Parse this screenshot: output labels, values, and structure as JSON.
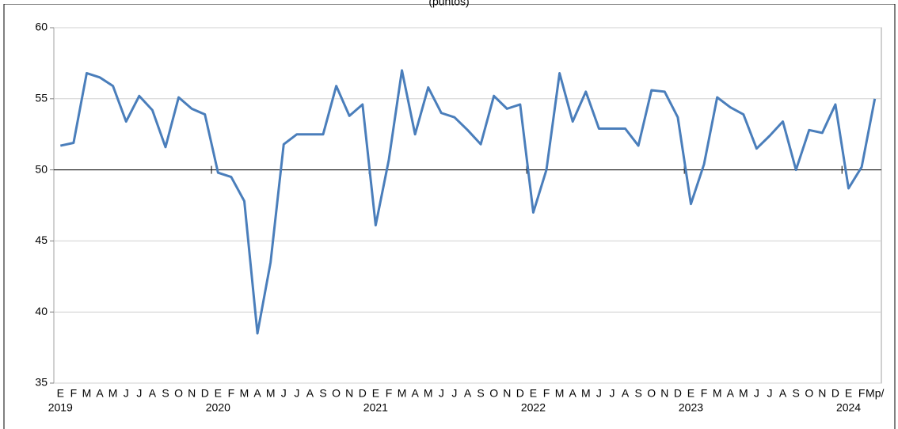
{
  "chart_data": {
    "type": "line",
    "title": "(puntos)",
    "categories": [
      "E",
      "F",
      "M",
      "A",
      "M",
      "J",
      "J",
      "A",
      "S",
      "O",
      "N",
      "D",
      "E",
      "F",
      "M",
      "A",
      "M",
      "J",
      "J",
      "A",
      "S",
      "O",
      "N",
      "D",
      "E",
      "F",
      "M",
      "A",
      "M",
      "J",
      "J",
      "A",
      "S",
      "O",
      "N",
      "D",
      "E",
      "F",
      "M",
      "A",
      "M",
      "J",
      "J",
      "A",
      "S",
      "O",
      "N",
      "D",
      "E",
      "F",
      "M",
      "A",
      "M",
      "J",
      "J",
      "A",
      "S",
      "O",
      "N",
      "D",
      "E",
      "F",
      "Mp/"
    ],
    "category_groups": [
      "2019",
      null,
      null,
      null,
      null,
      null,
      null,
      null,
      null,
      null,
      null,
      null,
      "2020",
      null,
      null,
      null,
      null,
      null,
      null,
      null,
      null,
      null,
      null,
      null,
      "2021",
      null,
      null,
      null,
      null,
      null,
      null,
      null,
      null,
      null,
      null,
      null,
      "2022",
      null,
      null,
      null,
      null,
      null,
      null,
      null,
      null,
      null,
      null,
      null,
      "2023",
      null,
      null,
      null,
      null,
      null,
      null,
      null,
      null,
      null,
      null,
      null,
      "2024",
      null,
      null
    ],
    "series": [
      {
        "color": "#4a7ebb",
        "values": [
          51.7,
          51.9,
          56.8,
          56.5,
          55.9,
          53.4,
          55.2,
          54.2,
          51.6,
          55.1,
          54.3,
          53.9,
          49.8,
          49.5,
          47.8,
          38.5,
          43.5,
          51.8,
          52.5,
          52.5,
          52.5,
          55.9,
          53.8,
          54.6,
          46.1,
          50.7,
          57.0,
          52.5,
          55.8,
          54.0,
          53.7,
          52.8,
          51.8,
          55.2,
          54.3,
          54.6,
          47.0,
          50.0,
          56.8,
          53.4,
          55.5,
          52.9,
          52.9,
          52.9,
          51.7,
          55.6,
          55.5,
          53.7,
          47.6,
          50.4,
          55.1,
          54.4,
          53.9,
          51.5,
          52.4,
          53.4,
          50.0,
          52.8,
          52.6,
          54.6,
          48.7,
          50.2,
          55.0
        ]
      }
    ],
    "ylim": [
      35,
      60
    ],
    "yticks": [
      35,
      40,
      45,
      50,
      55,
      60
    ],
    "grid": true,
    "reference_line": 50
  }
}
